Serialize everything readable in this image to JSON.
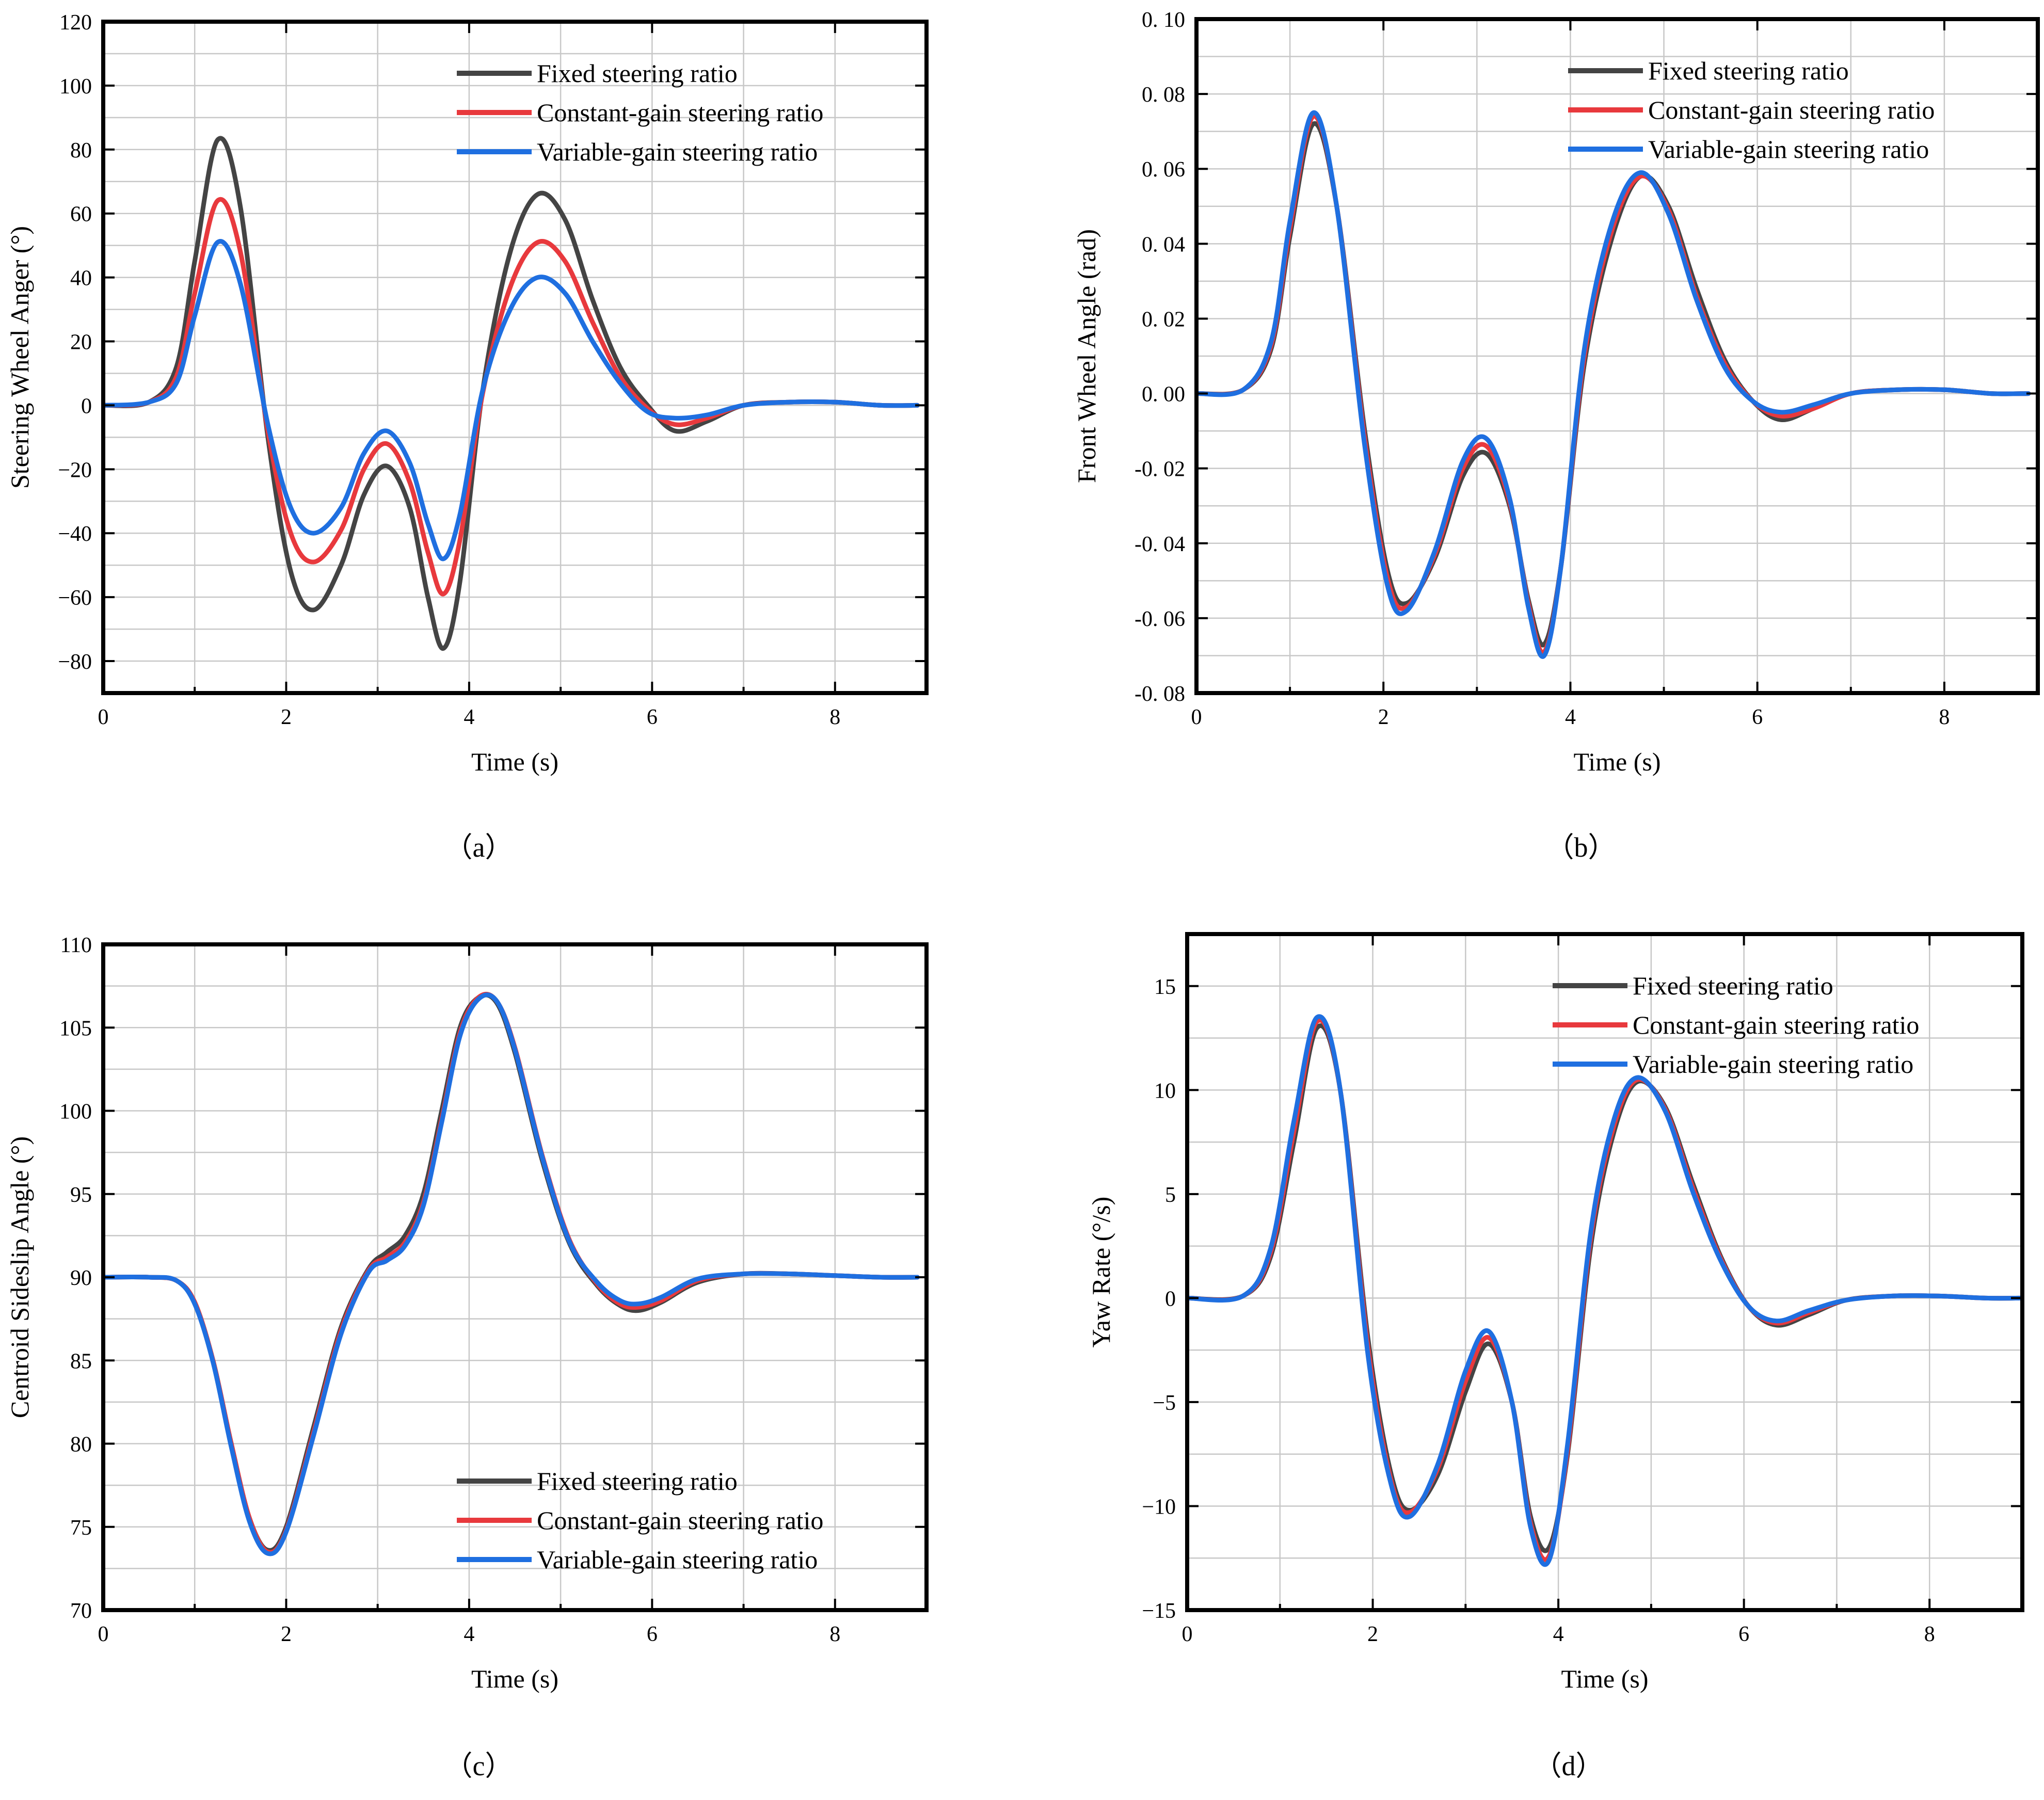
{
  "colors": {
    "fixed": "#444444",
    "constant": "#e8393d",
    "variable": "#1f6fe0"
  },
  "chart_data": [
    {
      "type": "line",
      "caption": "（a）",
      "xlabel": "Time (s)",
      "ylabel": "Steering Wheel Anger (°)",
      "xlim": [
        0,
        9
      ],
      "ylim": [
        -90,
        120
      ],
      "xticks": [
        0,
        2,
        4,
        6,
        8
      ],
      "xtick_labels": [
        "0",
        "2",
        "4",
        "6",
        "8"
      ],
      "yticks": [
        -80,
        -60,
        -40,
        -20,
        0,
        20,
        40,
        60,
        80,
        100,
        120
      ],
      "ytick_labels": [
        "−80",
        "−60",
        "−40",
        "−20",
        "0",
        "20",
        "40",
        "60",
        "80",
        "100",
        "120"
      ],
      "legend_position": "top-right",
      "series": [
        {
          "name": "Fixed steering ratio",
          "color_key": "fixed",
          "x": [
            0,
            0.5,
            0.8,
            1.0,
            1.25,
            1.5,
            1.8,
            2.05,
            2.3,
            2.6,
            2.85,
            3.1,
            3.35,
            3.55,
            3.72,
            3.9,
            4.15,
            4.45,
            4.75,
            5.05,
            5.35,
            5.65,
            5.95,
            6.25,
            6.6,
            7.0,
            7.5,
            8.0,
            8.5,
            8.9
          ],
          "values": [
            0,
            1,
            12,
            45,
            83,
            62,
            -10,
            -52,
            -64,
            -50,
            -28,
            -19,
            -32,
            -60,
            -76,
            -55,
            5,
            48,
            66,
            58,
            33,
            12,
            0,
            -8,
            -5,
            0,
            1,
            1,
            0,
            0
          ]
        },
        {
          "name": "Constant-gain steering ratio",
          "color_key": "constant",
          "x": [
            0,
            0.5,
            0.8,
            1.0,
            1.25,
            1.5,
            1.8,
            2.05,
            2.3,
            2.6,
            2.85,
            3.1,
            3.35,
            3.55,
            3.72,
            3.9,
            4.15,
            4.45,
            4.75,
            5.05,
            5.35,
            5.65,
            5.95,
            6.25,
            6.6,
            7.0,
            7.5,
            8.0,
            8.5,
            8.9
          ],
          "values": [
            0,
            1,
            9,
            35,
            64,
            48,
            -8,
            -40,
            -49,
            -39,
            -20,
            -12,
            -24,
            -46,
            -59,
            -42,
            4,
            37,
            51,
            45,
            26,
            9,
            -1,
            -6,
            -4,
            0,
            1,
            1,
            0,
            0
          ]
        },
        {
          "name": "Variable-gain steering ratio",
          "color_key": "variable",
          "x": [
            0,
            0.5,
            0.8,
            1.0,
            1.25,
            1.5,
            1.8,
            2.05,
            2.3,
            2.6,
            2.85,
            3.1,
            3.35,
            3.55,
            3.72,
            3.9,
            4.15,
            4.45,
            4.75,
            5.05,
            5.35,
            5.65,
            5.95,
            6.25,
            6.6,
            7.0,
            7.5,
            8.0,
            8.5,
            8.9
          ],
          "values": [
            0,
            1,
            7,
            28,
            51,
            38,
            -6,
            -32,
            -40,
            -32,
            -15,
            -8,
            -18,
            -37,
            -48,
            -34,
            5,
            30,
            40,
            35,
            20,
            7,
            -2,
            -4,
            -3,
            0,
            1,
            1,
            0,
            0
          ]
        }
      ]
    },
    {
      "type": "line",
      "caption": "（b）",
      "xlabel": "Time (s)",
      "ylabel": "Front Wheel Angle (rad)",
      "xlim": [
        0,
        9
      ],
      "ylim": [
        -0.08,
        0.1
      ],
      "xticks": [
        0,
        2,
        4,
        6,
        8
      ],
      "xtick_labels": [
        "0",
        "2",
        "4",
        "6",
        "8"
      ],
      "yticks": [
        -0.08,
        -0.06,
        -0.04,
        -0.02,
        0,
        0.02,
        0.04,
        0.06,
        0.08,
        0.1
      ],
      "ytick_labels": [
        "-0. 08",
        "-0. 06",
        "-0. 04",
        "-0. 02",
        "0. 00",
        "0. 02",
        "0. 04",
        "0. 06",
        "0. 08",
        "0. 10"
      ],
      "legend_position": "top-right",
      "series": [
        {
          "name": "Fixed steering ratio",
          "color_key": "fixed",
          "x": [
            0,
            0.5,
            0.8,
            1.0,
            1.25,
            1.5,
            1.8,
            2.05,
            2.25,
            2.55,
            2.85,
            3.1,
            3.35,
            3.55,
            3.72,
            3.9,
            4.15,
            4.45,
            4.75,
            5.05,
            5.35,
            5.65,
            5.95,
            6.25,
            6.6,
            7.0,
            7.5,
            8.0,
            8.5,
            8.9
          ],
          "values": [
            0,
            0.001,
            0.012,
            0.042,
            0.072,
            0.05,
            -0.01,
            -0.048,
            -0.056,
            -0.044,
            -0.022,
            -0.016,
            -0.03,
            -0.055,
            -0.067,
            -0.046,
            0.008,
            0.042,
            0.058,
            0.05,
            0.028,
            0.009,
            -0.002,
            -0.007,
            -0.004,
            0,
            0.001,
            0.001,
            0,
            0
          ]
        },
        {
          "name": "Constant-gain steering ratio",
          "color_key": "constant",
          "x": [
            0,
            0.5,
            0.8,
            1.0,
            1.25,
            1.5,
            1.8,
            2.05,
            2.25,
            2.55,
            2.85,
            3.1,
            3.35,
            3.55,
            3.72,
            3.9,
            4.15,
            4.45,
            4.75,
            5.05,
            5.35,
            5.65,
            5.95,
            6.25,
            6.6,
            7.0,
            7.5,
            8.0,
            8.5,
            8.9
          ],
          "values": [
            0,
            0.001,
            0.013,
            0.044,
            0.074,
            0.05,
            -0.012,
            -0.05,
            -0.057,
            -0.043,
            -0.02,
            -0.014,
            -0.029,
            -0.056,
            -0.069,
            -0.046,
            0.01,
            0.044,
            0.058,
            0.049,
            0.026,
            0.008,
            -0.002,
            -0.006,
            -0.004,
            0,
            0.001,
            0.001,
            0,
            0
          ]
        },
        {
          "name": "Variable-gain steering ratio",
          "color_key": "variable",
          "x": [
            0,
            0.5,
            0.8,
            1.0,
            1.25,
            1.5,
            1.8,
            2.05,
            2.25,
            2.55,
            2.85,
            3.1,
            3.35,
            3.55,
            3.72,
            3.9,
            4.15,
            4.45,
            4.75,
            5.05,
            5.35,
            5.65,
            5.95,
            6.25,
            6.6,
            7.0,
            7.5,
            8.0,
            8.5,
            8.9
          ],
          "values": [
            0,
            0.001,
            0.014,
            0.046,
            0.075,
            0.05,
            -0.014,
            -0.052,
            -0.058,
            -0.042,
            -0.018,
            -0.012,
            -0.028,
            -0.057,
            -0.07,
            -0.046,
            0.012,
            0.046,
            0.059,
            0.048,
            0.025,
            0.007,
            -0.002,
            -0.005,
            -0.003,
            0,
            0.001,
            0.001,
            0,
            0
          ]
        }
      ]
    },
    {
      "type": "line",
      "caption": "（c）",
      "xlabel": "Time (s)",
      "ylabel": "Centroid Sideslip Angle (°)",
      "xlim": [
        0,
        9
      ],
      "ylim": [
        70,
        110
      ],
      "xticks": [
        0,
        2,
        4,
        6,
        8
      ],
      "xtick_labels": [
        "0",
        "2",
        "4",
        "6",
        "8"
      ],
      "yticks": [
        70,
        75,
        80,
        85,
        90,
        95,
        100,
        105,
        110
      ],
      "ytick_labels": [
        "70",
        "75",
        "80",
        "85",
        "90",
        "95",
        "100",
        "105",
        "110"
      ],
      "legend_position": "bottom-right",
      "series": [
        {
          "name": "Fixed steering ratio",
          "color_key": "fixed",
          "x": [
            0,
            0.5,
            0.8,
            1.0,
            1.2,
            1.4,
            1.6,
            1.8,
            2.0,
            2.3,
            2.6,
            2.9,
            3.1,
            3.3,
            3.5,
            3.7,
            3.9,
            4.1,
            4.3,
            4.5,
            4.8,
            5.1,
            5.4,
            5.65,
            5.85,
            6.1,
            6.5,
            7.0,
            7.5,
            8.0,
            8.5,
            8.9
          ],
          "values": [
            90,
            90,
            89.8,
            88.5,
            85,
            80,
            75.5,
            73.6,
            75,
            81,
            87,
            90.5,
            91.5,
            92.5,
            95,
            100,
            105,
            106.8,
            106.5,
            103.5,
            97,
            92,
            89.5,
            88.3,
            88,
            88.5,
            89.7,
            90.2,
            90.2,
            90.1,
            90,
            90
          ]
        },
        {
          "name": "Constant-gain steering ratio",
          "color_key": "constant",
          "x": [
            0,
            0.5,
            0.8,
            1.0,
            1.2,
            1.4,
            1.6,
            1.8,
            2.0,
            2.3,
            2.6,
            2.9,
            3.1,
            3.3,
            3.5,
            3.7,
            3.9,
            4.1,
            4.3,
            4.5,
            4.8,
            5.1,
            5.4,
            5.65,
            5.85,
            6.1,
            6.5,
            7.0,
            7.5,
            8.0,
            8.5,
            8.9
          ],
          "values": [
            90,
            90,
            89.8,
            88.5,
            85,
            80,
            75.5,
            73.5,
            74.8,
            80.7,
            86.8,
            90.4,
            91.2,
            92.1,
            94.5,
            99.5,
            104.7,
            106.8,
            106.6,
            103.8,
            97.3,
            92.2,
            89.6,
            88.4,
            88.2,
            88.6,
            89.8,
            90.2,
            90.2,
            90.1,
            90,
            90
          ]
        },
        {
          "name": "Variable-gain steering ratio",
          "color_key": "variable",
          "x": [
            0,
            0.5,
            0.8,
            1.0,
            1.2,
            1.4,
            1.6,
            1.8,
            2.0,
            2.3,
            2.6,
            2.9,
            3.1,
            3.3,
            3.5,
            3.7,
            3.9,
            4.1,
            4.3,
            4.5,
            4.8,
            5.1,
            5.4,
            5.65,
            5.85,
            6.1,
            6.5,
            7.0,
            7.5,
            8.0,
            8.5,
            8.9
          ],
          "values": [
            90,
            90,
            89.8,
            88.4,
            84.9,
            79.8,
            75.3,
            73.4,
            74.7,
            80.5,
            86.6,
            90.3,
            91,
            91.9,
            94.3,
            99.3,
            104.5,
            106.7,
            106.6,
            103.7,
            97.2,
            92.1,
            89.7,
            88.6,
            88.4,
            88.8,
            89.9,
            90.2,
            90.2,
            90.1,
            90,
            90
          ]
        }
      ]
    },
    {
      "type": "line",
      "caption": "（d）",
      "xlabel": "Time (s)",
      "ylabel": "Yaw Rate (°/s)",
      "xlim": [
        0,
        9
      ],
      "ylim": [
        -15,
        17.5
      ],
      "xticks": [
        0,
        2,
        4,
        6,
        8
      ],
      "xtick_labels": [
        "0",
        "2",
        "4",
        "6",
        "8"
      ],
      "yticks": [
        -15,
        -10,
        -5,
        0,
        5,
        10,
        15
      ],
      "ytick_labels": [
        "−15",
        "−10",
        "−5",
        "0",
        "5",
        "10",
        "15"
      ],
      "legend_position": "top-right",
      "series": [
        {
          "name": "Fixed steering ratio",
          "color_key": "fixed",
          "x": [
            0,
            0.6,
            0.9,
            1.15,
            1.4,
            1.65,
            1.95,
            2.2,
            2.4,
            2.7,
            3.0,
            3.25,
            3.5,
            3.7,
            3.9,
            4.1,
            4.35,
            4.6,
            4.85,
            5.15,
            5.45,
            5.75,
            6.05,
            6.35,
            6.7,
            7.1,
            7.6,
            8.1,
            8.6,
            9.0
          ],
          "values": [
            0,
            0.1,
            2,
            7.5,
            13,
            10,
            -2,
            -8.5,
            -10.2,
            -8.5,
            -4.5,
            -2.2,
            -5,
            -10.5,
            -12,
            -7.5,
            2.5,
            8,
            10.4,
            9.2,
            5.5,
            2,
            -0.4,
            -1.3,
            -0.8,
            -0.1,
            0.1,
            0.1,
            0,
            0
          ]
        },
        {
          "name": "Constant-gain steering ratio",
          "color_key": "constant",
          "x": [
            0,
            0.6,
            0.9,
            1.15,
            1.4,
            1.65,
            1.95,
            2.2,
            2.4,
            2.7,
            3.0,
            3.25,
            3.5,
            3.7,
            3.9,
            4.1,
            4.35,
            4.6,
            4.85,
            5.15,
            5.45,
            5.75,
            6.05,
            6.35,
            6.7,
            7.1,
            7.6,
            8.1,
            8.6,
            9.0
          ],
          "values": [
            0,
            0.1,
            2.2,
            8,
            13.3,
            10,
            -2.4,
            -8.8,
            -10.3,
            -8.2,
            -4,
            -1.9,
            -5,
            -10.8,
            -12.4,
            -7.3,
            2.9,
            8.3,
            10.5,
            9.1,
            5.3,
            1.9,
            -0.4,
            -1.2,
            -0.7,
            -0.1,
            0.1,
            0.1,
            0,
            0
          ]
        },
        {
          "name": "Variable-gain steering ratio",
          "color_key": "variable",
          "x": [
            0,
            0.6,
            0.9,
            1.15,
            1.4,
            1.65,
            1.95,
            2.2,
            2.4,
            2.7,
            3.0,
            3.25,
            3.5,
            3.7,
            3.9,
            4.1,
            4.35,
            4.6,
            4.85,
            5.15,
            5.45,
            5.75,
            6.05,
            6.35,
            6.7,
            7.1,
            7.6,
            8.1,
            8.6,
            9.0
          ],
          "values": [
            0,
            0.1,
            2.4,
            8.5,
            13.5,
            10,
            -2.8,
            -9,
            -10.5,
            -8,
            -3.5,
            -1.6,
            -5,
            -11,
            -12.6,
            -7,
            3.2,
            8.6,
            10.6,
            9,
            5.1,
            1.8,
            -0.4,
            -1.1,
            -0.6,
            -0.1,
            0.1,
            0.1,
            0,
            0
          ]
        }
      ]
    }
  ]
}
